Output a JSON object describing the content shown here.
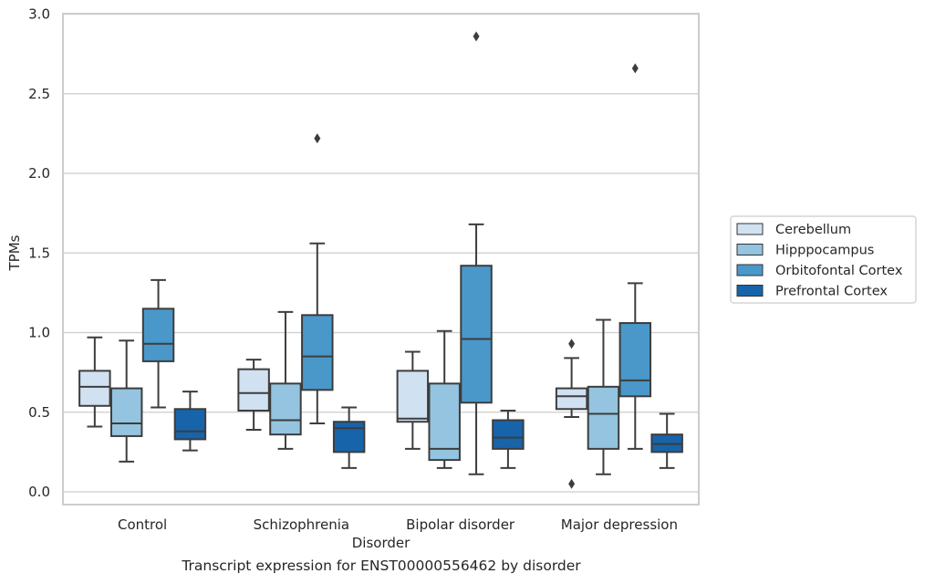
{
  "caption": "Transcript expression for ENST00000556462 by disorder",
  "chart_data": {
    "type": "box",
    "title": "",
    "xlabel": "Disorder",
    "ylabel": "TPMs",
    "ylim": [
      -0.08,
      3.0
    ],
    "yticks": [
      0.0,
      0.5,
      1.0,
      1.5,
      2.0,
      2.5,
      3.0
    ],
    "ytick_labels": [
      "0.0",
      "0.5",
      "1.0",
      "1.5",
      "2.0",
      "2.5",
      "3.0"
    ],
    "grid": "horizontal",
    "legend_position": "right, outside plot",
    "categories": [
      "Control",
      "Schizophrenia",
      "Bipolar disorder",
      "Major depression"
    ],
    "series": [
      {
        "name": "Cerebellum",
        "color": "#d0e1f2",
        "boxes": [
          {
            "whisker_low": 0.41,
            "q1": 0.54,
            "median": 0.66,
            "q3": 0.76,
            "whisker_high": 0.97,
            "outliers": []
          },
          {
            "whisker_low": 0.39,
            "q1": 0.51,
            "median": 0.62,
            "q3": 0.77,
            "whisker_high": 0.83,
            "outliers": []
          },
          {
            "whisker_low": 0.27,
            "q1": 0.44,
            "median": 0.46,
            "q3": 0.76,
            "whisker_high": 0.88,
            "outliers": []
          },
          {
            "whisker_low": 0.47,
            "q1": 0.52,
            "median": 0.6,
            "q3": 0.65,
            "whisker_high": 0.84,
            "outliers": [
              0.93,
              0.05
            ]
          }
        ]
      },
      {
        "name": "Hipppocampus",
        "color": "#94c4df",
        "boxes": [
          {
            "whisker_low": 0.19,
            "q1": 0.35,
            "median": 0.43,
            "q3": 0.65,
            "whisker_high": 0.95,
            "outliers": []
          },
          {
            "whisker_low": 0.27,
            "q1": 0.36,
            "median": 0.45,
            "q3": 0.68,
            "whisker_high": 1.13,
            "outliers": []
          },
          {
            "whisker_low": 0.15,
            "q1": 0.2,
            "median": 0.27,
            "q3": 0.68,
            "whisker_high": 1.01,
            "outliers": []
          },
          {
            "whisker_low": 0.11,
            "q1": 0.27,
            "median": 0.49,
            "q3": 0.66,
            "whisker_high": 1.08,
            "outliers": []
          }
        ]
      },
      {
        "name": "Orbitofontal Cortex",
        "color": "#4a98c9",
        "boxes": [
          {
            "whisker_low": 0.53,
            "q1": 0.82,
            "median": 0.93,
            "q3": 1.15,
            "whisker_high": 1.33,
            "outliers": []
          },
          {
            "whisker_low": 0.43,
            "q1": 0.64,
            "median": 0.85,
            "q3": 1.11,
            "whisker_high": 1.56,
            "outliers": [
              2.22
            ]
          },
          {
            "whisker_low": 0.11,
            "q1": 0.56,
            "median": 0.96,
            "q3": 1.42,
            "whisker_high": 1.68,
            "outliers": [
              2.86
            ]
          },
          {
            "whisker_low": 0.27,
            "q1": 0.6,
            "median": 0.7,
            "q3": 1.06,
            "whisker_high": 1.31,
            "outliers": [
              2.66
            ]
          }
        ]
      },
      {
        "name": "Prefrontal Cortex",
        "color": "#1764ab",
        "boxes": [
          {
            "whisker_low": 0.26,
            "q1": 0.33,
            "median": 0.38,
            "q3": 0.52,
            "whisker_high": 0.63,
            "outliers": []
          },
          {
            "whisker_low": 0.15,
            "q1": 0.25,
            "median": 0.4,
            "q3": 0.44,
            "whisker_high": 0.53,
            "outliers": []
          },
          {
            "whisker_low": 0.15,
            "q1": 0.27,
            "median": 0.34,
            "q3": 0.45,
            "whisker_high": 0.51,
            "outliers": []
          },
          {
            "whisker_low": 0.15,
            "q1": 0.25,
            "median": 0.3,
            "q3": 0.36,
            "whisker_high": 0.49,
            "outliers": []
          }
        ]
      }
    ]
  }
}
